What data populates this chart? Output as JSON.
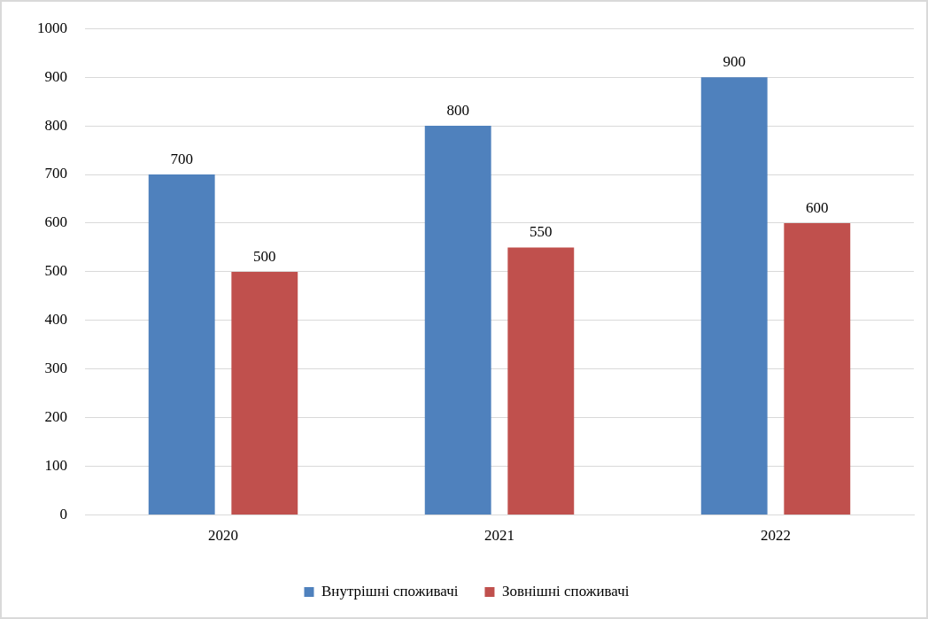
{
  "chart_data": {
    "type": "bar",
    "categories": [
      "2020",
      "2021",
      "2022"
    ],
    "series": [
      {
        "name": "Внутрішні споживачі",
        "color": "#4f81bd",
        "values": [
          700,
          800,
          900
        ]
      },
      {
        "name": "Зовнішні споживачі",
        "color": "#c0504d",
        "values": [
          500,
          550,
          600
        ]
      }
    ],
    "ylim": [
      0,
      1000
    ],
    "yticks": [
      0,
      100,
      200,
      300,
      400,
      500,
      600,
      700,
      800,
      900,
      1000
    ],
    "grid": "y",
    "legend": "bottom",
    "data_labels": true
  }
}
